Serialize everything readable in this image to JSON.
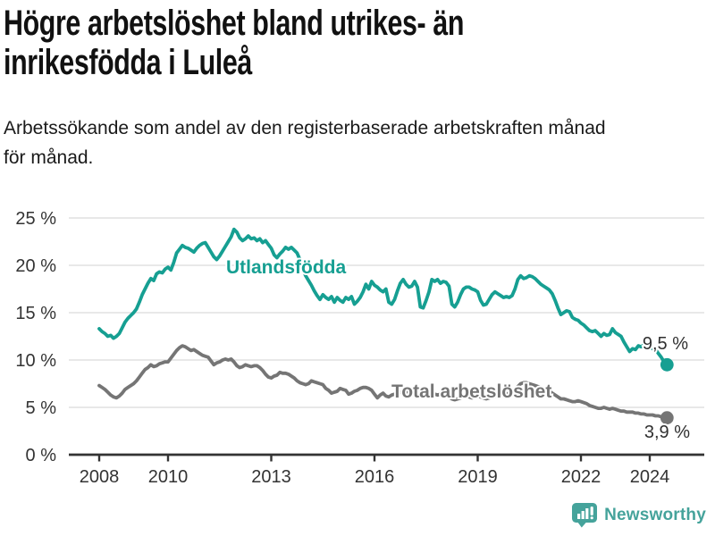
{
  "header": {
    "title_lines": [
      "Högre arbetslöshet bland utrikes- än",
      "inrikesfödda i Luleå"
    ],
    "subtitle_lines": [
      "Arbetssökande som andel av den registerbaserade arbetskraften månad",
      "för månad."
    ]
  },
  "footer": {
    "brand": "Newsworthy",
    "logo_icon": "bar-chart-speech-bubble-icon",
    "brand_color": "#45a39b"
  },
  "chart_data": {
    "type": "line",
    "title": "Högre arbetslöshet bland utrikes- än inrikesfödda i Luleå",
    "subtitle": "Arbetssökande som andel av den registerbaserade arbetskraften månad för månad.",
    "x_unit": "month",
    "x_start": "2008-01",
    "x_end": "2024-07",
    "xticks": [
      2008,
      2010,
      2013,
      2016,
      2019,
      2022,
      2024
    ],
    "ytick_labels": [
      "0 %",
      "5 %",
      "10 %",
      "15 %",
      "20 %",
      "25 %"
    ],
    "ylim": [
      0,
      25
    ],
    "grid": "horizontal",
    "legend_position": "inline-labels",
    "axis_color": "#333333",
    "grid_color": "#d9d9d9",
    "value_label_color": "#303030",
    "series": [
      {
        "name": "Utlandsfödda",
        "color": "#169f92",
        "end_value": 9.5,
        "end_value_label": "9,5 %",
        "values": [
          13.3,
          13.0,
          12.8,
          12.5,
          12.6,
          12.3,
          12.5,
          12.8,
          13.4,
          14.0,
          14.4,
          14.7,
          15.0,
          15.4,
          16.1,
          16.9,
          17.5,
          18.1,
          18.6,
          18.4,
          19.1,
          19.3,
          19.2,
          19.6,
          19.8,
          19.5,
          20.3,
          21.3,
          21.7,
          22.1,
          21.9,
          21.8,
          21.6,
          21.4,
          21.8,
          22.1,
          22.3,
          22.4,
          21.9,
          21.4,
          20.9,
          20.6,
          21.0,
          21.5,
          22.0,
          22.5,
          23.0,
          23.8,
          23.5,
          22.9,
          22.6,
          22.8,
          23.1,
          22.8,
          22.9,
          22.6,
          22.8,
          22.4,
          22.6,
          22.2,
          21.8,
          21.1,
          20.8,
          21.2,
          21.5,
          21.9,
          21.7,
          21.9,
          21.6,
          21.3,
          20.6,
          19.6,
          18.9,
          18.4,
          17.9,
          17.3,
          16.8,
          16.4,
          16.9,
          16.6,
          16.4,
          16.7,
          16.1,
          16.6,
          16.3,
          16.1,
          16.6,
          16.4,
          16.7,
          15.9,
          16.2,
          16.6,
          17.2,
          18.0,
          17.5,
          18.3,
          17.9,
          17.7,
          17.4,
          17.2,
          17.5,
          16.1,
          15.9,
          16.4,
          17.3,
          18.1,
          18.5,
          18.0,
          17.7,
          17.8,
          18.3,
          17.7,
          15.6,
          15.5,
          16.3,
          17.2,
          18.5,
          18.3,
          18.5,
          18.1,
          18.3,
          18.2,
          17.8,
          15.9,
          15.6,
          16.1,
          16.9,
          17.5,
          17.7,
          17.7,
          17.5,
          17.4,
          17.2,
          16.3,
          15.8,
          15.9,
          16.4,
          16.9,
          17.2,
          17.0,
          16.8,
          16.6,
          16.7,
          16.6,
          16.8,
          17.5,
          18.5,
          18.9,
          18.6,
          18.7,
          18.9,
          18.8,
          18.6,
          18.3,
          18.0,
          17.8,
          17.6,
          17.4,
          17.0,
          16.3,
          15.5,
          14.8,
          15.0,
          15.2,
          15.1,
          14.5,
          14.3,
          14.2,
          13.9,
          13.7,
          13.4,
          13.1,
          13.0,
          13.1,
          12.8,
          12.5,
          12.8,
          12.6,
          12.7,
          13.3,
          12.9,
          12.7,
          12.5,
          11.9,
          11.4,
          10.9,
          11.2,
          11.1,
          11.5,
          11.4,
          11.6,
          11.7,
          11.4,
          11.2,
          11.1,
          10.7,
          10.3,
          9.8,
          9.5
        ]
      },
      {
        "name": "Total arbetslöshet",
        "color": "#757575",
        "end_value": 3.9,
        "end_value_label": "3,9 %",
        "values": [
          7.3,
          7.1,
          6.9,
          6.6,
          6.3,
          6.1,
          6.0,
          6.2,
          6.5,
          6.9,
          7.1,
          7.3,
          7.5,
          7.8,
          8.2,
          8.6,
          9.0,
          9.2,
          9.5,
          9.3,
          9.4,
          9.6,
          9.7,
          9.8,
          9.8,
          10.2,
          10.6,
          11.0,
          11.3,
          11.5,
          11.4,
          11.2,
          11.0,
          11.1,
          10.9,
          10.7,
          10.5,
          10.4,
          10.3,
          9.9,
          9.5,
          9.7,
          9.8,
          10.0,
          10.1,
          10.0,
          10.1,
          9.8,
          9.4,
          9.2,
          9.3,
          9.5,
          9.4,
          9.3,
          9.4,
          9.4,
          9.2,
          8.9,
          8.5,
          8.2,
          8.1,
          8.3,
          8.4,
          8.7,
          8.6,
          8.6,
          8.5,
          8.3,
          8.1,
          7.8,
          7.6,
          7.5,
          7.4,
          7.5,
          7.8,
          7.7,
          7.6,
          7.5,
          7.4,
          7.0,
          6.8,
          6.5,
          6.6,
          6.7,
          7.0,
          6.9,
          6.8,
          6.4,
          6.5,
          6.7,
          6.8,
          7.0,
          7.1,
          7.1,
          7.0,
          6.8,
          6.4,
          6.0,
          6.3,
          6.5,
          6.2,
          6.1,
          6.3,
          6.4,
          6.5,
          6.6,
          6.5,
          6.6,
          6.8,
          6.7,
          6.5,
          6.3,
          6.2,
          6.1,
          6.3,
          6.4,
          6.5,
          6.4,
          6.3,
          6.4,
          6.3,
          6.2,
          6.1,
          5.9,
          5.8,
          5.9,
          6.0,
          6.1,
          6.2,
          6.1,
          6.0,
          6.1,
          6.2,
          6.1,
          6.0,
          5.9,
          6.0,
          6.1,
          6.2,
          6.1,
          6.2,
          6.3,
          6.4,
          6.5,
          6.6,
          6.8,
          7.2,
          7.5,
          7.6,
          7.6,
          7.5,
          7.4,
          7.3,
          7.2,
          7.1,
          7.0,
          6.9,
          6.7,
          6.5,
          6.3,
          6.1,
          5.9,
          5.9,
          5.8,
          5.7,
          5.6,
          5.6,
          5.7,
          5.6,
          5.5,
          5.4,
          5.2,
          5.1,
          5.0,
          4.9,
          4.9,
          5.0,
          4.9,
          4.8,
          4.9,
          4.8,
          4.7,
          4.6,
          4.6,
          4.5,
          4.5,
          4.5,
          4.4,
          4.4,
          4.3,
          4.3,
          4.2,
          4.2,
          4.2,
          4.1,
          4.1,
          4.0,
          4.0,
          3.9
        ]
      }
    ]
  }
}
